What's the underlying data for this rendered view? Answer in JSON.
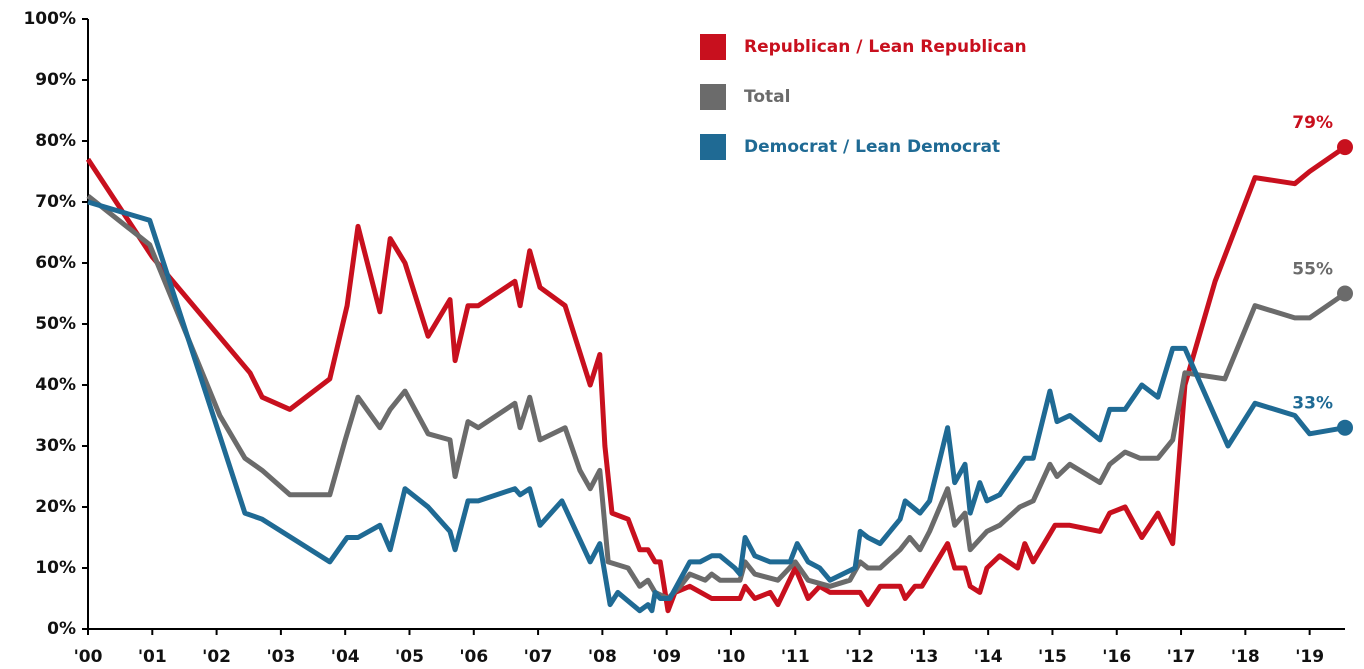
{
  "chart_data": {
    "type": "line",
    "xlim": [
      2000,
      2019.55
    ],
    "ylim": [
      0,
      100
    ],
    "xticks": [
      {
        "value": 2000,
        "label": "'00"
      },
      {
        "value": 2001,
        "label": "'01"
      },
      {
        "value": 2002,
        "label": "'02"
      },
      {
        "value": 2003,
        "label": "'03"
      },
      {
        "value": 2004,
        "label": "'04"
      },
      {
        "value": 2005,
        "label": "'05"
      },
      {
        "value": 2006,
        "label": "'06"
      },
      {
        "value": 2007,
        "label": "'07"
      },
      {
        "value": 2008,
        "label": "'08"
      },
      {
        "value": 2009,
        "label": "'09"
      },
      {
        "value": 2010,
        "label": "'10"
      },
      {
        "value": 2011,
        "label": "'11"
      },
      {
        "value": 2012,
        "label": "'12"
      },
      {
        "value": 2013,
        "label": "'13"
      },
      {
        "value": 2014,
        "label": "'14"
      },
      {
        "value": 2015,
        "label": "'15"
      },
      {
        "value": 2016,
        "label": "'16"
      },
      {
        "value": 2017,
        "label": "'17"
      },
      {
        "value": 2018,
        "label": "'18"
      },
      {
        "value": 2019,
        "label": "'19"
      }
    ],
    "yticks": [
      {
        "value": 0,
        "label": "0%"
      },
      {
        "value": 10,
        "label": "10%"
      },
      {
        "value": 20,
        "label": "20%"
      },
      {
        "value": 30,
        "label": "30%"
      },
      {
        "value": 40,
        "label": "40%"
      },
      {
        "value": 50,
        "label": "50%"
      },
      {
        "value": 60,
        "label": "60%"
      },
      {
        "value": 70,
        "label": "70%"
      },
      {
        "value": 80,
        "label": "80%"
      },
      {
        "value": 90,
        "label": "90%"
      },
      {
        "value": 100,
        "label": "100%"
      }
    ],
    "series": [
      {
        "name": "Republican / Lean Republican",
        "color": "#c8101e",
        "end_label": "79%",
        "x": [
          2000.0,
          2001.0,
          2002.52,
          2002.71,
          2003.14,
          2003.76,
          2004.03,
          2004.2,
          2004.54,
          2004.7,
          2004.93,
          2005.29,
          2005.63,
          2005.71,
          2005.91,
          2006.07,
          2006.64,
          2006.72,
          2006.87,
          2007.03,
          2007.42,
          2007.81,
          2007.96,
          2008.04,
          2008.15,
          2008.4,
          2008.58,
          2008.71,
          2008.82,
          2008.9,
          2009.02,
          2009.13,
          2009.36,
          2009.7,
          2010.14,
          2010.22,
          2010.37,
          2010.61,
          2010.73,
          2011.0,
          2011.2,
          2011.38,
          2011.54,
          2012.01,
          2012.13,
          2012.32,
          2012.63,
          2012.71,
          2012.86,
          2012.97,
          2013.37,
          2013.48,
          2013.64,
          2013.72,
          2013.87,
          2013.98,
          2014.18,
          2014.46,
          2014.57,
          2014.7,
          2015.04,
          2015.27,
          2015.74,
          2015.89,
          2016.13,
          2016.39,
          2016.64,
          2016.87,
          2017.06,
          2017.53,
          2018.15,
          2018.77,
          2019.0,
          2019.55
        ],
        "values": [
          77,
          61,
          42,
          38,
          36,
          41,
          53,
          66,
          52,
          64,
          60,
          48,
          54,
          44,
          53,
          53,
          57,
          53,
          62,
          56,
          53,
          40,
          45,
          30,
          19,
          18,
          13,
          13,
          11,
          11,
          3,
          6,
          7,
          5,
          5,
          7,
          5,
          6,
          4,
          10,
          5,
          7,
          6,
          6,
          4,
          7,
          7,
          5,
          7,
          7,
          14,
          10,
          10,
          7,
          6,
          10,
          12,
          10,
          14,
          11,
          17,
          17,
          16,
          19,
          20,
          15,
          19,
          14,
          40,
          57,
          74,
          73,
          75,
          79
        ]
      },
      {
        "name": "Total",
        "color": "#6b6b6b",
        "end_label": "55%",
        "x": [
          2000.0,
          2000.96,
          2002.05,
          2002.44,
          2002.71,
          2003.14,
          2003.76,
          2004.0,
          2004.2,
          2004.54,
          2004.7,
          2004.93,
          2005.29,
          2005.63,
          2005.71,
          2005.91,
          2006.07,
          2006.64,
          2006.72,
          2006.87,
          2007.03,
          2007.42,
          2007.65,
          2007.81,
          2007.96,
          2008.09,
          2008.4,
          2008.58,
          2008.71,
          2008.82,
          2009.02,
          2009.21,
          2009.36,
          2009.6,
          2009.7,
          2009.83,
          2010.14,
          2010.22,
          2010.37,
          2010.73,
          2011.0,
          2011.2,
          2011.54,
          2011.85,
          2012.01,
          2012.13,
          2012.32,
          2012.63,
          2012.78,
          2012.94,
          2013.09,
          2013.37,
          2013.48,
          2013.64,
          2013.72,
          2013.98,
          2014.18,
          2014.49,
          2014.7,
          2014.96,
          2015.07,
          2015.27,
          2015.74,
          2015.89,
          2016.13,
          2016.36,
          2016.64,
          2016.87,
          2017.06,
          2017.68,
          2018.15,
          2018.77,
          2019.0,
          2019.55
        ],
        "values": [
          71,
          63,
          35,
          28,
          26,
          22,
          22,
          31,
          38,
          33,
          36,
          39,
          32,
          31,
          25,
          34,
          33,
          37,
          33,
          38,
          31,
          33,
          26,
          23,
          26,
          11,
          10,
          7,
          8,
          6,
          5,
          7,
          9,
          8,
          9,
          8,
          8,
          11,
          9,
          8,
          11,
          8,
          7,
          8,
          11,
          10,
          10,
          13,
          15,
          13,
          16,
          23,
          17,
          19,
          13,
          16,
          17,
          20,
          21,
          27,
          25,
          27,
          24,
          27,
          29,
          28,
          28,
          31,
          42,
          41,
          53,
          51,
          51,
          55
        ]
      },
      {
        "name": "Democrat / Lean Democrat",
        "color": "#1f6a94",
        "end_label": "33%",
        "x": [
          2000.0,
          2000.96,
          2002.44,
          2002.71,
          2003.76,
          2004.03,
          2004.2,
          2004.54,
          2004.7,
          2004.93,
          2005.29,
          2005.63,
          2005.71,
          2005.91,
          2006.07,
          2006.64,
          2006.72,
          2006.87,
          2007.03,
          2007.37,
          2007.81,
          2007.96,
          2008.12,
          2008.24,
          2008.58,
          2008.71,
          2008.77,
          2008.82,
          2008.9,
          2009.05,
          2009.36,
          2009.52,
          2009.7,
          2009.83,
          2010.06,
          2010.14,
          2010.22,
          2010.37,
          2010.61,
          2010.92,
          2011.03,
          2011.2,
          2011.38,
          2011.54,
          2011.93,
          2012.01,
          2012.13,
          2012.32,
          2012.63,
          2012.71,
          2012.94,
          2013.09,
          2013.37,
          2013.48,
          2013.64,
          2013.72,
          2013.87,
          2013.98,
          2014.18,
          2014.57,
          2014.7,
          2014.96,
          2015.07,
          2015.27,
          2015.74,
          2015.89,
          2016.13,
          2016.39,
          2016.64,
          2016.87,
          2017.06,
          2017.73,
          2018.15,
          2018.77,
          2019.0,
          2019.55
        ],
        "values": [
          70,
          67,
          19,
          18,
          11,
          15,
          15,
          17,
          13,
          23,
          20,
          16,
          13,
          21,
          21,
          23,
          22,
          23,
          17,
          21,
          11,
          14,
          4,
          6,
          3,
          4,
          3,
          6,
          5,
          5,
          11,
          11,
          12,
          12,
          10,
          9,
          15,
          12,
          11,
          11,
          14,
          11,
          10,
          8,
          10,
          16,
          15,
          14,
          18,
          21,
          19,
          21,
          33,
          24,
          27,
          19,
          24,
          21,
          22,
          28,
          28,
          39,
          34,
          35,
          31,
          36,
          36,
          40,
          38,
          46,
          46,
          30,
          37,
          35,
          32,
          33
        ]
      }
    ]
  }
}
